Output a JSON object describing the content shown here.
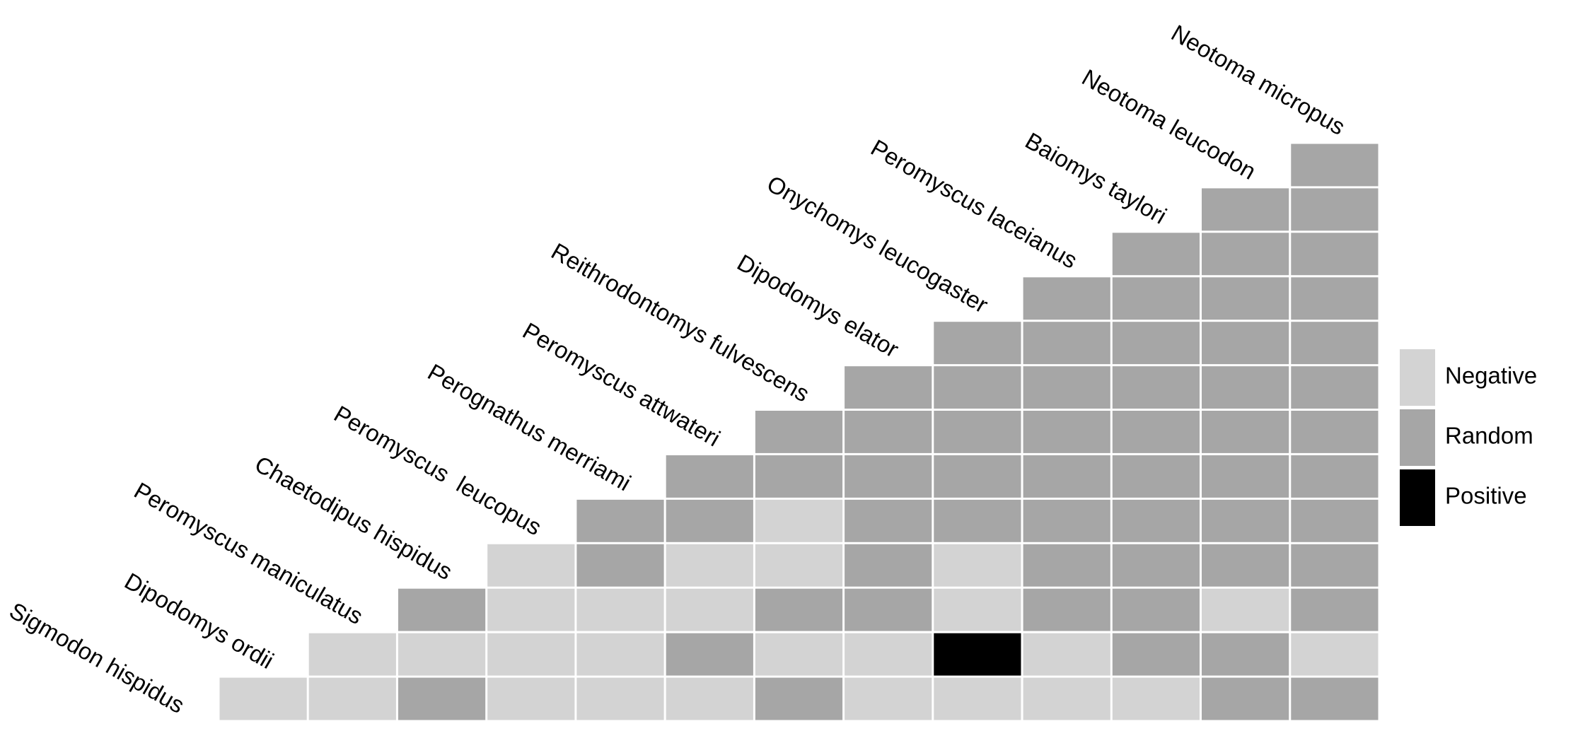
{
  "chart_data": {
    "type": "heatmap",
    "layout": "lower-triangular co-occurrence matrix",
    "title": "",
    "species": [
      "Sigmodon hispidus",
      "Dipodomys ordii",
      "Peromyscus maniculatus",
      "Chaetodipus hispidus",
      "Peromyscus  leucopus",
      "Perognathus merriami",
      "Peromyscus attwateri",
      "Reithrodontomys fulvescens",
      "Dipodomys elator",
      "Onychomys leucogaster",
      "Peromyscus laceianus",
      "Baiomys taylori",
      "Neotoma leucodon",
      "Neotoma micropus"
    ],
    "categories": [
      "Negative",
      "Random",
      "Positive"
    ],
    "colors": {
      "Negative": "#d3d3d3",
      "Random": "#a6a6a6",
      "Positive": "#000000",
      "gridline": "#ffffff"
    },
    "rows": [
      [
        "Random"
      ],
      [
        "Random",
        "Random"
      ],
      [
        "Random",
        "Random",
        "Random"
      ],
      [
        "Random",
        "Random",
        "Random",
        "Random"
      ],
      [
        "Random",
        "Random",
        "Random",
        "Random",
        "Random"
      ],
      [
        "Random",
        "Random",
        "Random",
        "Random",
        "Random",
        "Random"
      ],
      [
        "Random",
        "Random",
        "Random",
        "Random",
        "Random",
        "Random",
        "Random"
      ],
      [
        "Random",
        "Random",
        "Random",
        "Random",
        "Random",
        "Random",
        "Random",
        "Random"
      ],
      [
        "Random",
        "Random",
        "Negative",
        "Random",
        "Random",
        "Random",
        "Random",
        "Random",
        "Random"
      ],
      [
        "Negative",
        "Random",
        "Negative",
        "Negative",
        "Random",
        "Negative",
        "Random",
        "Random",
        "Random",
        "Random"
      ],
      [
        "Random",
        "Negative",
        "Negative",
        "Negative",
        "Random",
        "Random",
        "Negative",
        "Random",
        "Random",
        "Negative",
        "Random"
      ],
      [
        "Negative",
        "Negative",
        "Negative",
        "Negative",
        "Random",
        "Negative",
        "Negative",
        "Positive",
        "Negative",
        "Random",
        "Random",
        "Negative"
      ],
      [
        "Negative",
        "Negative",
        "Random",
        "Negative",
        "Negative",
        "Negative",
        "Random",
        "Negative",
        "Negative",
        "Negative",
        "Negative",
        "Random",
        "Random"
      ]
    ],
    "legend": {
      "position": "right",
      "items": [
        "Negative",
        "Random",
        "Positive"
      ]
    }
  }
}
